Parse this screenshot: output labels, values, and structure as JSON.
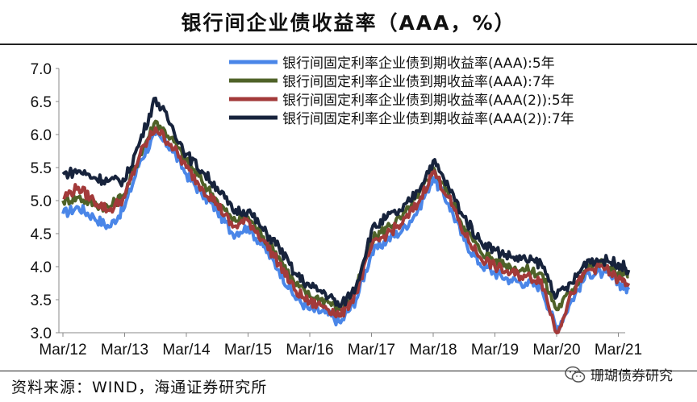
{
  "header": {
    "title": "银行间企业债收益率（AAA，%）"
  },
  "footer": {
    "source": "资料来源：WIND，海通证券研究所",
    "watermark": "珊瑚债券研究",
    "watermark_icon": "wechat-icon"
  },
  "chart_data": {
    "type": "line",
    "title": "银行间企业债收益率（AAA，%）",
    "xlabel": "",
    "ylabel": "",
    "ylim": [
      3.0,
      7.0
    ],
    "yticks": [
      "3.0",
      "3.5",
      "4.0",
      "4.5",
      "5.0",
      "5.5",
      "6.0",
      "6.5",
      "7.0"
    ],
    "xlim": [
      "2012-03",
      "2021-05"
    ],
    "xticks": [
      "Mar/12",
      "Mar/13",
      "Mar/14",
      "Mar/15",
      "Mar/16",
      "Mar/17",
      "Mar/18",
      "Mar/19",
      "Mar/20",
      "Mar/21"
    ],
    "grid": false,
    "legend": "top-right",
    "x": [
      "2012-03",
      "2012-06",
      "2012-09",
      "2012-12",
      "2013-03",
      "2013-06",
      "2013-09",
      "2013-12",
      "2014-03",
      "2014-06",
      "2014-09",
      "2014-12",
      "2015-03",
      "2015-06",
      "2015-09",
      "2015-12",
      "2016-03",
      "2016-06",
      "2016-09",
      "2016-12",
      "2017-03",
      "2017-06",
      "2017-09",
      "2017-12",
      "2018-03",
      "2018-06",
      "2018-09",
      "2018-12",
      "2019-03",
      "2019-06",
      "2019-09",
      "2019-12",
      "2020-03",
      "2020-06",
      "2020-09",
      "2020-12",
      "2021-03",
      "2021-05"
    ],
    "series": [
      {
        "name": "银行间固定利率企业债到期收益率(AAA):5年",
        "color": "#4a86e8",
        "values": [
          4.8,
          4.9,
          4.75,
          4.6,
          4.9,
          5.6,
          6.0,
          5.8,
          5.4,
          5.1,
          4.85,
          4.5,
          4.6,
          4.3,
          3.95,
          3.55,
          3.35,
          3.3,
          3.15,
          3.5,
          4.2,
          4.4,
          4.55,
          4.85,
          5.35,
          4.95,
          4.4,
          4.05,
          3.9,
          3.8,
          3.75,
          3.7,
          3.05,
          3.5,
          3.9,
          3.9,
          3.75,
          3.65
        ]
      },
      {
        "name": "银行间固定利率企业债到期收益率(AAA):7年",
        "color": "#4f6228",
        "values": [
          5.0,
          5.05,
          4.95,
          4.9,
          5.1,
          5.7,
          6.2,
          5.95,
          5.6,
          5.3,
          5.0,
          4.7,
          4.75,
          4.45,
          4.15,
          3.75,
          3.55,
          3.5,
          3.35,
          3.65,
          4.4,
          4.6,
          4.75,
          5.05,
          5.5,
          5.1,
          4.6,
          4.25,
          4.1,
          4.0,
          3.95,
          3.9,
          3.35,
          3.65,
          4.0,
          4.05,
          3.9,
          3.85
        ]
      },
      {
        "name": "银行间固定利率企业债到期收益率(AAA(2)):5年",
        "color": "#a33a3a",
        "values": [
          5.05,
          5.2,
          5.0,
          4.85,
          5.05,
          5.7,
          6.1,
          5.85,
          5.5,
          5.2,
          4.95,
          4.6,
          4.7,
          4.4,
          4.05,
          3.65,
          3.45,
          3.4,
          3.25,
          3.6,
          4.3,
          4.5,
          4.65,
          4.95,
          5.45,
          5.05,
          4.5,
          4.15,
          4.0,
          3.9,
          3.85,
          3.8,
          3.0,
          3.6,
          3.95,
          4.0,
          3.8,
          3.75
        ]
      },
      {
        "name": "银行间固定利率企业债到期收益率(AAA(2)):7年",
        "color": "#17233c",
        "values": [
          5.4,
          5.45,
          5.35,
          5.3,
          5.3,
          5.9,
          6.55,
          6.15,
          5.7,
          5.45,
          5.2,
          4.85,
          4.85,
          4.55,
          4.3,
          3.9,
          3.7,
          3.6,
          3.4,
          3.7,
          4.55,
          4.75,
          4.85,
          5.15,
          5.6,
          5.2,
          4.75,
          4.4,
          4.25,
          4.15,
          4.1,
          4.05,
          3.55,
          3.75,
          4.1,
          4.1,
          4.05,
          3.95
        ]
      }
    ]
  }
}
